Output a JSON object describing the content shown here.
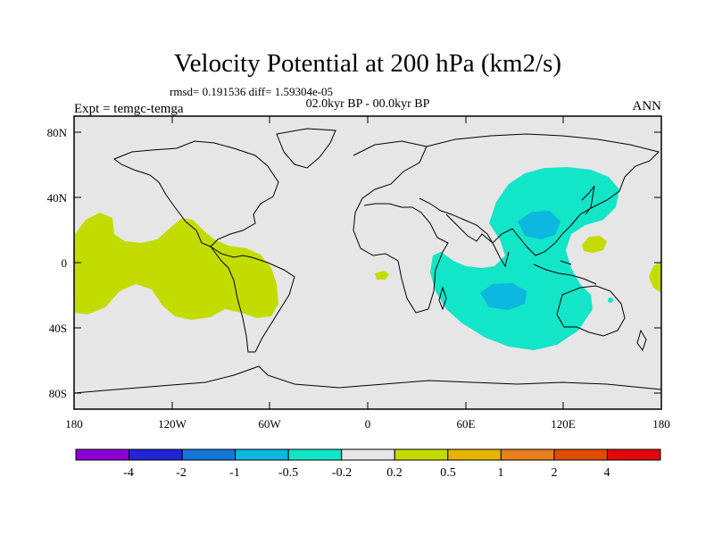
{
  "title": "Velocity Potential at 200 hPa (km2/s)",
  "stats": "rmsd= 0.191536 diff= 1.59304e-05",
  "period": "02.0kyr BP - 00.0kyr BP",
  "experiment": "Expt = temgc-temga",
  "season": "ANN",
  "lat_labels": [
    "80N",
    "40N",
    "0",
    "40S",
    "80S"
  ],
  "lon_labels": [
    "180",
    "120W",
    "60W",
    "0",
    "60E",
    "120E",
    "180"
  ],
  "colorbar": {
    "colors": [
      "#8c00d8",
      "#2224d6",
      "#1576d8",
      "#0cb7e0",
      "#12e5c8",
      "#e6e6e6",
      "#c3dc00",
      "#e6b400",
      "#e8801c",
      "#e04c00",
      "#e00808"
    ],
    "labels": [
      "-4",
      "-2",
      "-1",
      "-0.5",
      "-0.2",
      "0.2",
      "0.5",
      "1",
      "2",
      "4"
    ]
  },
  "map_colors": {
    "background": "#e6e6e6",
    "positive_0_2_to_0_5": "#c3dc00",
    "negative_0_2_to_0_5": "#12e5c8",
    "negative_0_5_to_1": "#0cb7e0"
  }
}
